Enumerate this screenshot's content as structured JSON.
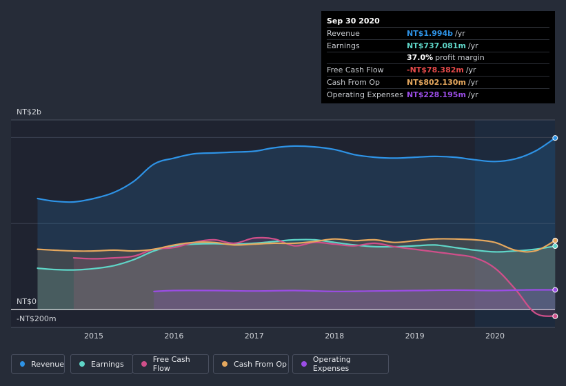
{
  "chart_data": {
    "type": "area",
    "x_ticks": [
      "2015",
      "2016",
      "2017",
      "2018",
      "2019",
      "2020"
    ],
    "y_ticks": [
      {
        "label": "NT$2b",
        "value": 2000
      },
      {
        "label": "NT$0",
        "value": 0
      },
      {
        "label": "-NT$200m",
        "value": -200
      }
    ],
    "unit": "NT$ millions",
    "ylim": [
      -200,
      2000
    ],
    "series": [
      {
        "name": "Revenue",
        "color": "#2e93e6",
        "x": [
          2014.3,
          2014.5,
          2014.75,
          2015.0,
          2015.25,
          2015.5,
          2015.75,
          2016.0,
          2016.25,
          2016.5,
          2016.75,
          2017.0,
          2017.25,
          2017.5,
          2017.75,
          2018.0,
          2018.25,
          2018.5,
          2018.75,
          2019.0,
          2019.25,
          2019.5,
          2019.75,
          2020.0,
          2020.25,
          2020.5,
          2020.75
        ],
        "values": [
          1290,
          1260,
          1250,
          1290,
          1360,
          1490,
          1690,
          1760,
          1810,
          1820,
          1830,
          1840,
          1880,
          1900,
          1890,
          1860,
          1800,
          1770,
          1760,
          1770,
          1780,
          1770,
          1740,
          1720,
          1750,
          1840,
          1994
        ]
      },
      {
        "name": "Earnings",
        "color": "#5fd6c8",
        "x": [
          2014.3,
          2014.5,
          2014.75,
          2015.0,
          2015.25,
          2015.5,
          2015.75,
          2016.0,
          2016.25,
          2016.5,
          2016.75,
          2017.0,
          2017.25,
          2017.5,
          2017.75,
          2018.0,
          2018.25,
          2018.5,
          2018.75,
          2019.0,
          2019.25,
          2019.5,
          2019.75,
          2020.0,
          2020.25,
          2020.5,
          2020.75
        ],
        "values": [
          480,
          465,
          460,
          475,
          510,
          580,
          680,
          740,
          760,
          765,
          760,
          770,
          790,
          810,
          810,
          780,
          750,
          730,
          730,
          740,
          750,
          720,
          690,
          670,
          680,
          700,
          737
        ]
      },
      {
        "name": "Free Cash Flow",
        "color": "#d04f8a",
        "x": [
          2014.75,
          2015.0,
          2015.25,
          2015.5,
          2015.75,
          2016.0,
          2016.25,
          2016.5,
          2016.75,
          2017.0,
          2017.25,
          2017.5,
          2017.75,
          2018.0,
          2018.25,
          2018.5,
          2018.75,
          2019.0,
          2019.25,
          2019.5,
          2019.75,
          2020.0,
          2020.25,
          2020.5,
          2020.75
        ],
        "values": [
          600,
          590,
          600,
          620,
          700,
          720,
          780,
          810,
          770,
          830,
          820,
          740,
          780,
          760,
          740,
          770,
          730,
          700,
          670,
          640,
          600,
          480,
          240,
          -40,
          -78
        ]
      },
      {
        "name": "Cash From Op",
        "color": "#e6a85e",
        "x": [
          2014.3,
          2014.5,
          2014.75,
          2015.0,
          2015.25,
          2015.5,
          2015.75,
          2016.0,
          2016.25,
          2016.5,
          2016.75,
          2017.0,
          2017.25,
          2017.5,
          2017.75,
          2018.0,
          2018.25,
          2018.5,
          2018.75,
          2019.0,
          2019.25,
          2019.5,
          2019.75,
          2020.0,
          2020.25,
          2020.5,
          2020.75
        ],
        "values": [
          700,
          690,
          680,
          680,
          690,
          680,
          700,
          750,
          780,
          780,
          750,
          760,
          770,
          770,
          790,
          820,
          800,
          810,
          780,
          800,
          820,
          820,
          810,
          780,
          690,
          680,
          802
        ]
      },
      {
        "name": "Operating Expenses",
        "color": "#9b4de6",
        "x": [
          2015.75,
          2016.0,
          2016.5,
          2017.0,
          2017.5,
          2018.0,
          2018.5,
          2019.0,
          2019.5,
          2020.0,
          2020.25,
          2020.5,
          2020.75
        ],
        "values": [
          210,
          220,
          220,
          215,
          220,
          210,
          215,
          220,
          225,
          220,
          225,
          228,
          228
        ]
      }
    ],
    "forecast_start": 2019.75,
    "legend": "bottom"
  },
  "tooltip": {
    "date": "Sep 30 2020",
    "rows": [
      {
        "label": "Revenue",
        "value": "NT$1.994b",
        "unit": "/yr",
        "color": "#2e93e6"
      },
      {
        "label": "Earnings",
        "value": "NT$737.081m",
        "unit": "/yr",
        "color": "#5fd6c8"
      },
      {
        "label": "",
        "value": "37.0%",
        "unit": "profit margin",
        "color": "#ffffff"
      },
      {
        "label": "Free Cash Flow",
        "value": "-NT$78.382m",
        "unit": "/yr",
        "color": "#e64a4a"
      },
      {
        "label": "Cash From Op",
        "value": "NT$802.130m",
        "unit": "/yr",
        "color": "#e6a85e"
      },
      {
        "label": "Operating Expenses",
        "value": "NT$228.195m",
        "unit": "/yr",
        "color": "#9b4de6"
      }
    ]
  },
  "legend": [
    {
      "label": "Revenue",
      "color": "#2e93e6"
    },
    {
      "label": "Earnings",
      "color": "#5fd6c8"
    },
    {
      "label": "Free Cash Flow",
      "color": "#d04f8a"
    },
    {
      "label": "Cash From Op",
      "color": "#e6a85e"
    },
    {
      "label": "Operating Expenses",
      "color": "#9b4de6"
    }
  ]
}
